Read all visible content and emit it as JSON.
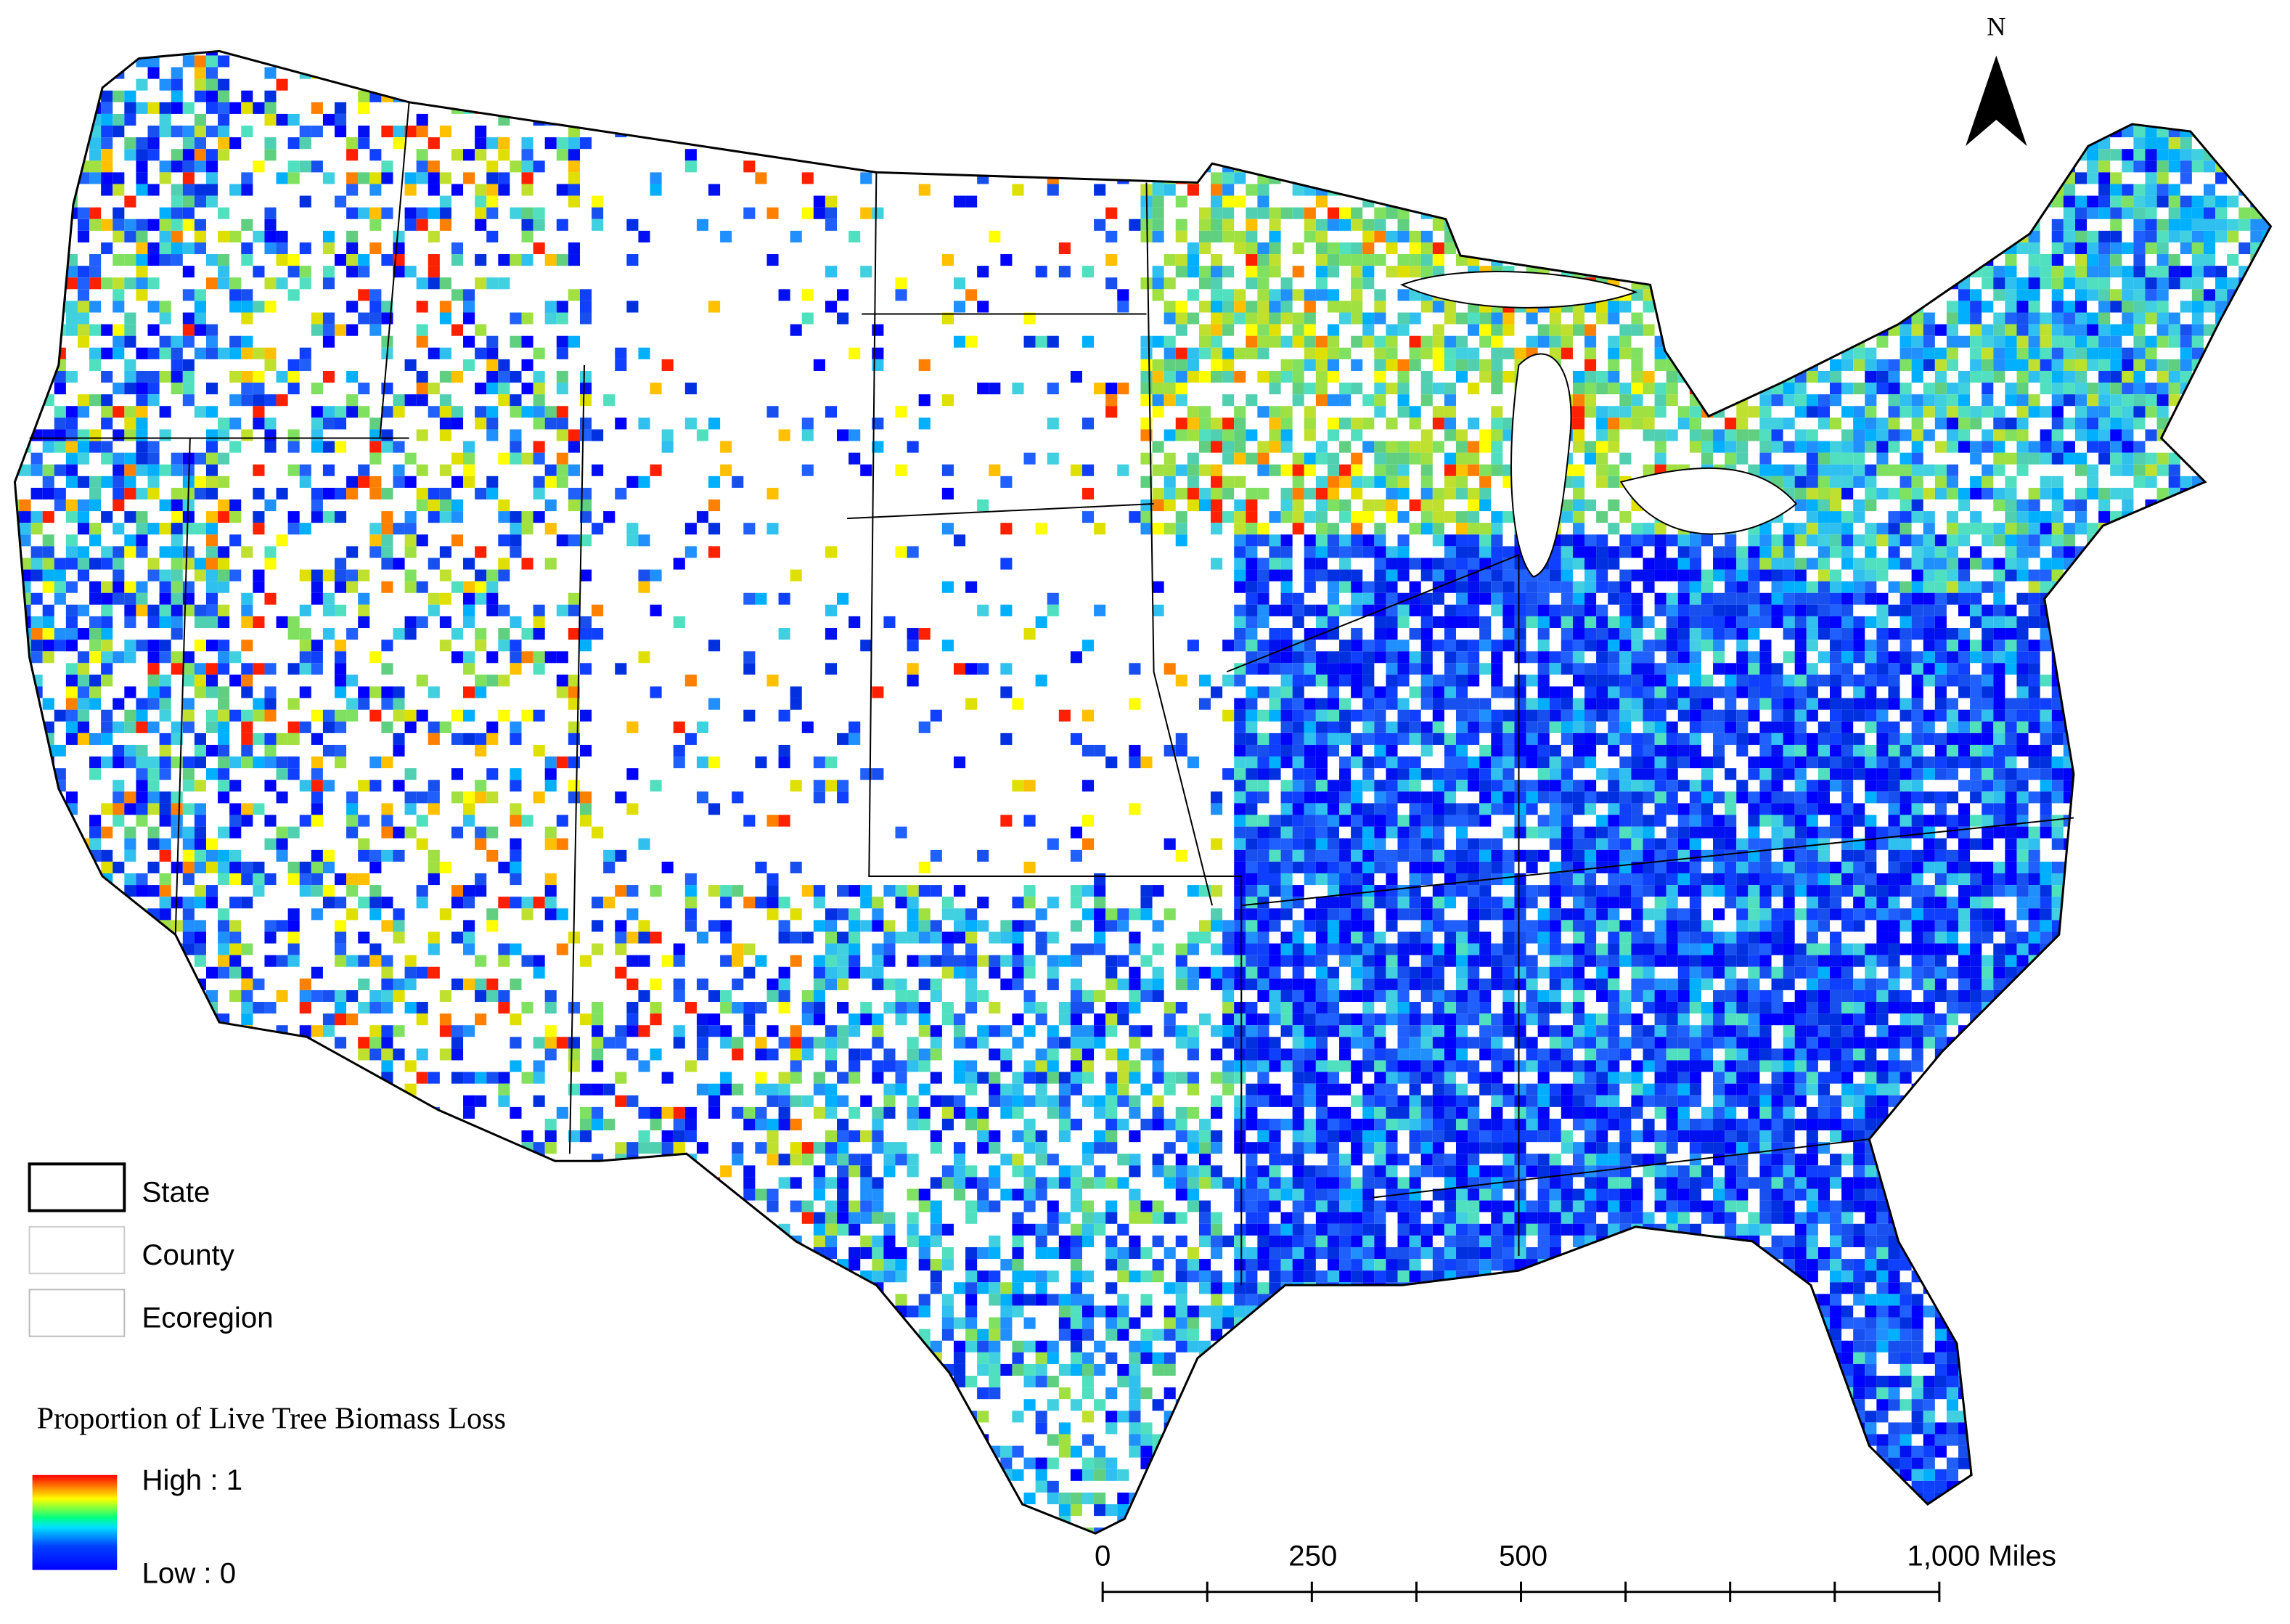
{
  "north_arrow": {
    "label": "N"
  },
  "legend": {
    "items": [
      {
        "label": "State"
      },
      {
        "label": "County"
      },
      {
        "label": "Ecoregion"
      }
    ],
    "ramp": {
      "title": "Proportion of Live Tree Biomass Loss",
      "high": "High : 1",
      "low": "Low : 0"
    }
  },
  "scale_bar": {
    "labels": [
      "0",
      "250",
      "500",
      "1,000 Miles"
    ]
  }
}
